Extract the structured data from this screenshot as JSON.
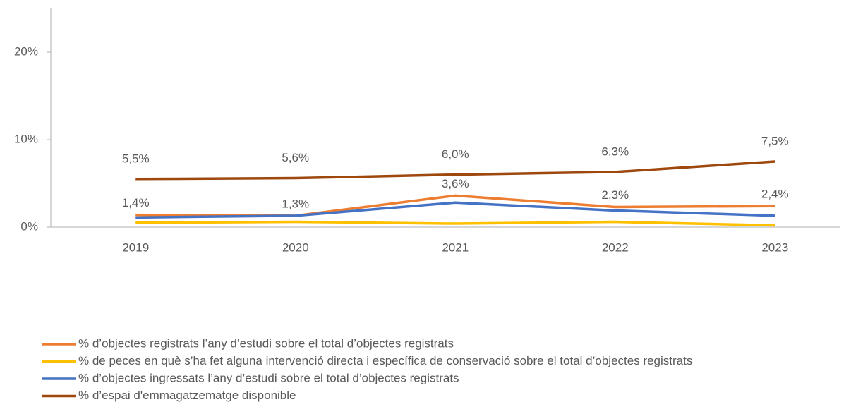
{
  "chart_data": {
    "type": "line",
    "categories": [
      "2019",
      "2020",
      "2021",
      "2022",
      "2023"
    ],
    "series": [
      {
        "name": "% d’objectes registrats l’any d’estudi sobre el total d’objectes registrats",
        "color": "#ed7d31",
        "values": [
          1.4,
          1.3,
          3.6,
          2.3,
          2.4
        ],
        "value_labels": [
          "1,4%",
          "1,3%",
          "3,6%",
          "2,3%",
          "2,4%"
        ]
      },
      {
        "name": "% de peces en què s’ha fet alguna intervenció directa i específica de conservació sobre el total d’objectes registrats",
        "color": "#ffc000",
        "values": [
          0.5,
          0.6,
          0.4,
          0.6,
          0.2
        ]
      },
      {
        "name": "% d’objectes ingressats l’any d’estudi sobre el total d’objectes registrats",
        "color": "#4472c4",
        "values": [
          1.1,
          1.3,
          2.8,
          1.9,
          1.3
        ]
      },
      {
        "name": "% d’espai d'emmagatzematge disponible",
        "color": "#9e480e",
        "values": [
          5.5,
          5.6,
          6.0,
          6.3,
          7.5
        ],
        "value_labels": [
          "5,5%",
          "5,6%",
          "6,0%",
          "6,3%",
          "7,5%"
        ]
      }
    ],
    "ylim": [
      0,
      25
    ],
    "yticks": [
      {
        "value": 0,
        "label": "0%"
      },
      {
        "value": 10,
        "label": "10%"
      },
      {
        "value": 20,
        "label": "20%"
      }
    ],
    "legend": "bottom-left"
  }
}
